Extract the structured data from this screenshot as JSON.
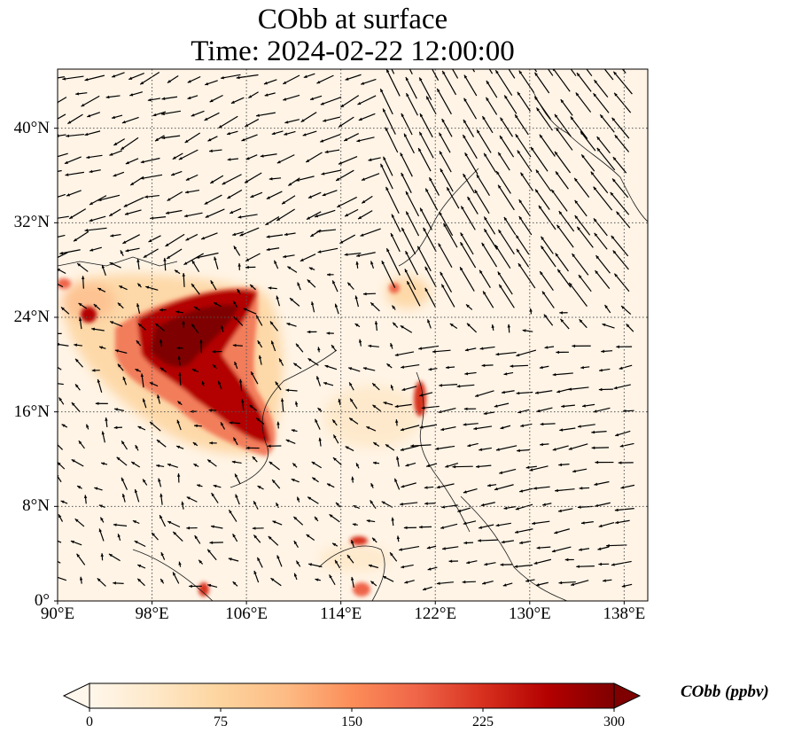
{
  "title": {
    "line1": "CObb at surface",
    "line2": "Time: 2024-02-22 12:00:00"
  },
  "map": {
    "projection": "PlateCarree",
    "lon_range": [
      90,
      140
    ],
    "lat_range": [
      0,
      45
    ],
    "gridlines": "dotted",
    "overlay": "wind vectors (black arrows)",
    "field_colormap": "OrRd",
    "x_ticks": [
      "90°E",
      "98°E",
      "106°E",
      "114°E",
      "122°E",
      "130°E",
      "138°E"
    ],
    "y_ticks": [
      "0°",
      "8°N",
      "16°N",
      "24°N",
      "32°N",
      "40°N"
    ],
    "x_tick_values": [
      90,
      98,
      106,
      114,
      122,
      130,
      138
    ],
    "y_tick_values": [
      0,
      8,
      16,
      24,
      32,
      40
    ]
  },
  "colorbar": {
    "label": "CObb (ppbv)",
    "min": 0,
    "max": 300,
    "ticks": [
      "0",
      "75",
      "150",
      "225",
      "300"
    ],
    "extend": "both",
    "colors": [
      "#fff7ec",
      "#fee8c8",
      "#fdd49e",
      "#fdbb84",
      "#fc8d59",
      "#ef6548",
      "#d7301f",
      "#b30000",
      "#7f0000"
    ]
  },
  "chart_data": {
    "type": "heatmap",
    "title": "CObb at surface\nTime: 2024-02-22 12:00:00",
    "variable": "CObb",
    "units": "ppbv",
    "value_range": [
      0,
      300
    ],
    "high_concentration_regions": [
      {
        "lon": [
          96,
          109
        ],
        "lat": [
          13,
          27
        ],
        "value": 300
      },
      {
        "lon": [
          92,
          95
        ],
        "lat": [
          21,
          24
        ],
        "value": 200
      },
      {
        "lon": [
          119,
          121
        ],
        "lat": [
          15,
          19
        ],
        "value": 200
      },
      {
        "lon": [
          116,
          118
        ],
        "lat": [
          4,
          6
        ],
        "value": 150
      }
    ]
  }
}
